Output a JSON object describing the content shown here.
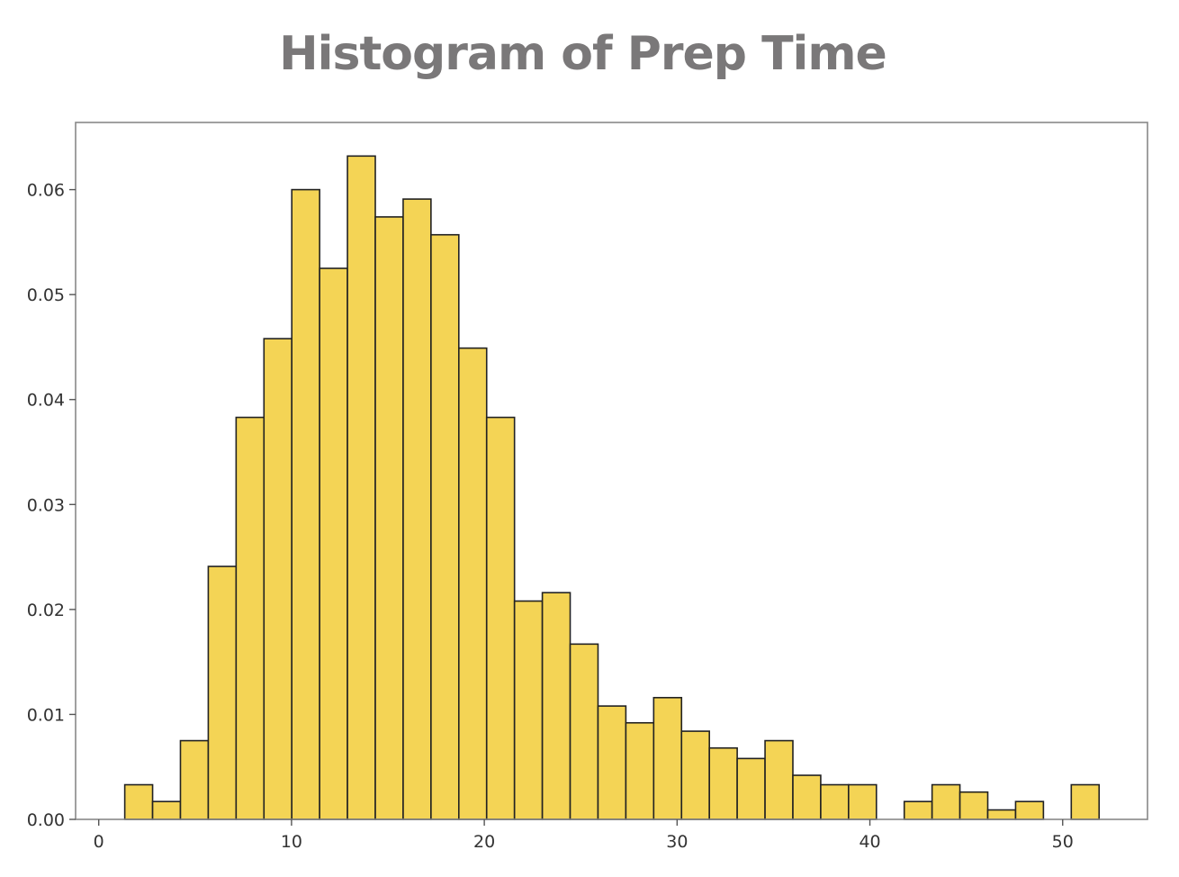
{
  "chart_data": {
    "type": "bar",
    "title": "Histogram of Prep Time",
    "xlabel": "",
    "ylabel": "",
    "xlim": [
      -1.2,
      54.4
    ],
    "ylim": [
      0,
      0.0664
    ],
    "xticks": [
      0,
      10,
      20,
      30,
      40,
      50
    ],
    "xtick_labels": [
      "0",
      "10",
      "20",
      "30",
      "40",
      "50"
    ],
    "yticks": [
      0,
      0.01,
      0.02,
      0.03,
      0.04,
      0.05,
      0.06
    ],
    "ytick_labels": [
      "0.00",
      "0.01",
      "0.02",
      "0.03",
      "0.04",
      "0.05",
      "0.06"
    ],
    "grid": false,
    "bar_color": "#f4d455",
    "edge_color": "#222222",
    "bin_start": 1.35,
    "bin_width": 1.444,
    "values": [
      0.0033,
      0.0017,
      0.0075,
      0.0241,
      0.0383,
      0.0458,
      0.06,
      0.0525,
      0.0632,
      0.0574,
      0.0591,
      0.0557,
      0.0449,
      0.0383,
      0.0208,
      0.0216,
      0.0167,
      0.0108,
      0.0092,
      0.0116,
      0.0084,
      0.0068,
      0.0058,
      0.0075,
      0.0042,
      0.0033,
      0.0033,
      0,
      0.0017,
      0.0033,
      0.0026,
      0.0009,
      0.0017,
      0,
      0.0033
    ]
  }
}
